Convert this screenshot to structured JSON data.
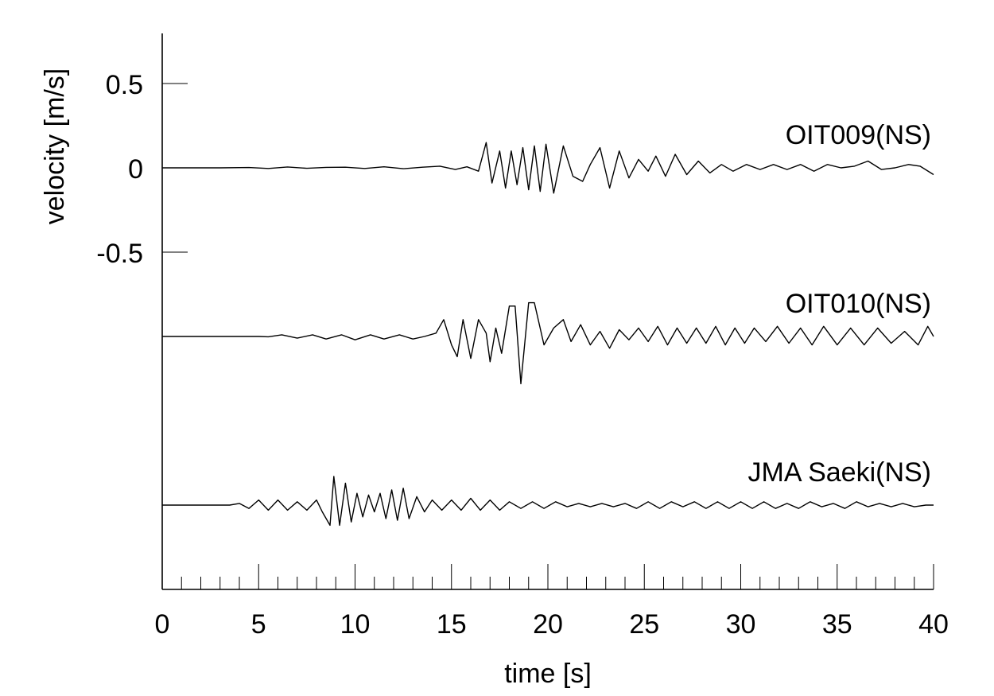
{
  "chart_data": {
    "type": "line",
    "xlabel": "time [s]",
    "ylabel": "velocity [m/s]",
    "xlim": [
      0,
      40
    ],
    "x_ticks": [
      "0",
      "5",
      "10",
      "15",
      "20",
      "25",
      "30",
      "35",
      "40"
    ],
    "y_ticks": [
      "0.5",
      "0",
      "-0.5"
    ],
    "grid": false,
    "series": [
      {
        "name": "OIT009(NS)",
        "offset": 0,
        "points": [
          [
            0,
            0
          ],
          [
            3,
            0
          ],
          [
            4.5,
            0.002
          ],
          [
            5.5,
            -0.004
          ],
          [
            6.5,
            0.005
          ],
          [
            7.5,
            -0.003
          ],
          [
            8.5,
            0.003
          ],
          [
            9.5,
            0.004
          ],
          [
            10.5,
            -0.004
          ],
          [
            11.5,
            0.006
          ],
          [
            12.5,
            -0.005
          ],
          [
            13.5,
            0.004
          ],
          [
            14.4,
            0.01
          ],
          [
            15.2,
            -0.01
          ],
          [
            15.8,
            0.006
          ],
          [
            16.4,
            -0.02
          ],
          [
            16.8,
            0.15
          ],
          [
            17.1,
            -0.09
          ],
          [
            17.5,
            0.1
          ],
          [
            17.8,
            -0.12
          ],
          [
            18.1,
            0.1
          ],
          [
            18.4,
            -0.1
          ],
          [
            18.7,
            0.12
          ],
          [
            19.0,
            -0.13
          ],
          [
            19.3,
            0.13
          ],
          [
            19.6,
            -0.14
          ],
          [
            19.9,
            0.14
          ],
          [
            20.3,
            -0.15
          ],
          [
            20.8,
            0.13
          ],
          [
            21.3,
            -0.05
          ],
          [
            21.8,
            -0.08
          ],
          [
            22.2,
            0.02
          ],
          [
            22.7,
            0.12
          ],
          [
            23.2,
            -0.12
          ],
          [
            23.7,
            0.1
          ],
          [
            24.2,
            -0.06
          ],
          [
            24.7,
            0.05
          ],
          [
            25.2,
            -0.02
          ],
          [
            25.6,
            0.07
          ],
          [
            26.1,
            -0.05
          ],
          [
            26.6,
            0.08
          ],
          [
            27.2,
            -0.04
          ],
          [
            27.8,
            0.04
          ],
          [
            28.4,
            -0.03
          ],
          [
            29.0,
            0.02
          ],
          [
            29.6,
            -0.02
          ],
          [
            30.3,
            0.02
          ],
          [
            31.0,
            -0.01
          ],
          [
            31.7,
            0.02
          ],
          [
            32.4,
            -0.01
          ],
          [
            33.1,
            0.02
          ],
          [
            33.8,
            -0.02
          ],
          [
            34.5,
            0.02
          ],
          [
            35.2,
            0.0
          ],
          [
            35.9,
            0.01
          ],
          [
            36.6,
            0.04
          ],
          [
            37.3,
            -0.01
          ],
          [
            38.0,
            0.0
          ],
          [
            38.7,
            0.02
          ],
          [
            39.3,
            0.01
          ],
          [
            40,
            -0.04
          ]
        ]
      },
      {
        "name": "OIT010(NS)",
        "offset": -1.0,
        "points": [
          [
            0,
            0
          ],
          [
            5,
            0
          ],
          [
            5.5,
            -0.002
          ],
          [
            6.2,
            0.01
          ],
          [
            7.0,
            -0.01
          ],
          [
            7.8,
            0.01
          ],
          [
            8.5,
            -0.015
          ],
          [
            9.3,
            0.01
          ],
          [
            10.0,
            -0.02
          ],
          [
            10.8,
            0.01
          ],
          [
            11.5,
            -0.015
          ],
          [
            12.3,
            0.01
          ],
          [
            13.0,
            -0.015
          ],
          [
            13.6,
            0.0
          ],
          [
            14.2,
            0.02
          ],
          [
            14.6,
            0.1
          ],
          [
            15.0,
            -0.05
          ],
          [
            15.3,
            -0.12
          ],
          [
            15.6,
            0.1
          ],
          [
            16.0,
            -0.13
          ],
          [
            16.4,
            0.1
          ],
          [
            16.8,
            0.02
          ],
          [
            17.0,
            -0.15
          ],
          [
            17.3,
            0.05
          ],
          [
            17.6,
            -0.1
          ],
          [
            18.0,
            0.18
          ],
          [
            18.3,
            0.18
          ],
          [
            18.6,
            -0.28
          ],
          [
            19.0,
            0.2
          ],
          [
            19.3,
            0.2
          ],
          [
            19.8,
            -0.05
          ],
          [
            20.3,
            0.05
          ],
          [
            20.8,
            0.1
          ],
          [
            21.2,
            -0.03
          ],
          [
            21.7,
            0.07
          ],
          [
            22.2,
            -0.05
          ],
          [
            22.7,
            0.03
          ],
          [
            23.2,
            -0.07
          ],
          [
            23.7,
            0.04
          ],
          [
            24.2,
            -0.02
          ],
          [
            24.7,
            0.05
          ],
          [
            25.2,
            -0.03
          ],
          [
            25.7,
            0.06
          ],
          [
            26.2,
            -0.05
          ],
          [
            26.7,
            0.05
          ],
          [
            27.2,
            -0.04
          ],
          [
            27.7,
            0.05
          ],
          [
            28.2,
            -0.04
          ],
          [
            28.7,
            0.06
          ],
          [
            29.2,
            -0.05
          ],
          [
            29.7,
            0.05
          ],
          [
            30.2,
            -0.04
          ],
          [
            30.7,
            0.05
          ],
          [
            31.3,
            -0.03
          ],
          [
            31.9,
            0.06
          ],
          [
            32.5,
            -0.04
          ],
          [
            33.1,
            0.05
          ],
          [
            33.7,
            -0.05
          ],
          [
            34.3,
            0.06
          ],
          [
            35.0,
            -0.05
          ],
          [
            35.7,
            0.05
          ],
          [
            36.4,
            -0.05
          ],
          [
            37.1,
            0.05
          ],
          [
            37.8,
            -0.04
          ],
          [
            38.5,
            0.03
          ],
          [
            39.2,
            -0.05
          ],
          [
            39.7,
            0.06
          ],
          [
            40,
            0.0
          ]
        ]
      },
      {
        "name": "JMA Saeki(NS)",
        "offset": -2.0,
        "points": [
          [
            0,
            0
          ],
          [
            3.5,
            0
          ],
          [
            4.0,
            0.01
          ],
          [
            4.5,
            -0.02
          ],
          [
            5.0,
            0.03
          ],
          [
            5.5,
            -0.03
          ],
          [
            6.0,
            0.03
          ],
          [
            6.5,
            -0.03
          ],
          [
            7.0,
            0.02
          ],
          [
            7.5,
            -0.03
          ],
          [
            8.0,
            0.03
          ],
          [
            8.3,
            -0.04
          ],
          [
            8.7,
            -0.12
          ],
          [
            8.9,
            0.17
          ],
          [
            9.2,
            -0.12
          ],
          [
            9.5,
            0.13
          ],
          [
            9.8,
            -0.1
          ],
          [
            10.1,
            0.07
          ],
          [
            10.4,
            -0.07
          ],
          [
            10.7,
            0.06
          ],
          [
            11.0,
            -0.04
          ],
          [
            11.3,
            0.07
          ],
          [
            11.6,
            -0.08
          ],
          [
            11.9,
            0.09
          ],
          [
            12.2,
            -0.09
          ],
          [
            12.5,
            0.1
          ],
          [
            12.8,
            -0.08
          ],
          [
            13.2,
            0.05
          ],
          [
            13.6,
            -0.04
          ],
          [
            14.0,
            0.03
          ],
          [
            14.5,
            -0.03
          ],
          [
            15.0,
            0.03
          ],
          [
            15.5,
            -0.03
          ],
          [
            16.0,
            0.04
          ],
          [
            16.5,
            -0.03
          ],
          [
            17.0,
            0.03
          ],
          [
            17.5,
            -0.03
          ],
          [
            18.0,
            0.02
          ],
          [
            18.6,
            -0.02
          ],
          [
            19.2,
            0.02
          ],
          [
            19.8,
            -0.02
          ],
          [
            20.4,
            0.02
          ],
          [
            21.0,
            -0.01
          ],
          [
            21.6,
            0.01
          ],
          [
            22.2,
            -0.01
          ],
          [
            22.8,
            0.01
          ],
          [
            23.4,
            -0.01
          ],
          [
            24.0,
            0.01
          ],
          [
            24.6,
            -0.02
          ],
          [
            25.2,
            0.02
          ],
          [
            25.8,
            -0.02
          ],
          [
            26.4,
            0.02
          ],
          [
            27.0,
            -0.01
          ],
          [
            27.6,
            0.02
          ],
          [
            28.2,
            -0.02
          ],
          [
            28.8,
            0.02
          ],
          [
            29.4,
            -0.02
          ],
          [
            30.0,
            0.02
          ],
          [
            30.6,
            -0.02
          ],
          [
            31.2,
            0.02
          ],
          [
            31.8,
            -0.02
          ],
          [
            32.4,
            0.01
          ],
          [
            33.0,
            -0.02
          ],
          [
            33.6,
            0.02
          ],
          [
            34.2,
            -0.01
          ],
          [
            34.8,
            0.01
          ],
          [
            35.4,
            -0.02
          ],
          [
            36.0,
            0.02
          ],
          [
            36.6,
            -0.01
          ],
          [
            37.2,
            0.01
          ],
          [
            37.8,
            -0.01
          ],
          [
            38.4,
            0.01
          ],
          [
            39.0,
            -0.01
          ],
          [
            39.6,
            0.0
          ],
          [
            40,
            0.0
          ]
        ]
      }
    ]
  }
}
